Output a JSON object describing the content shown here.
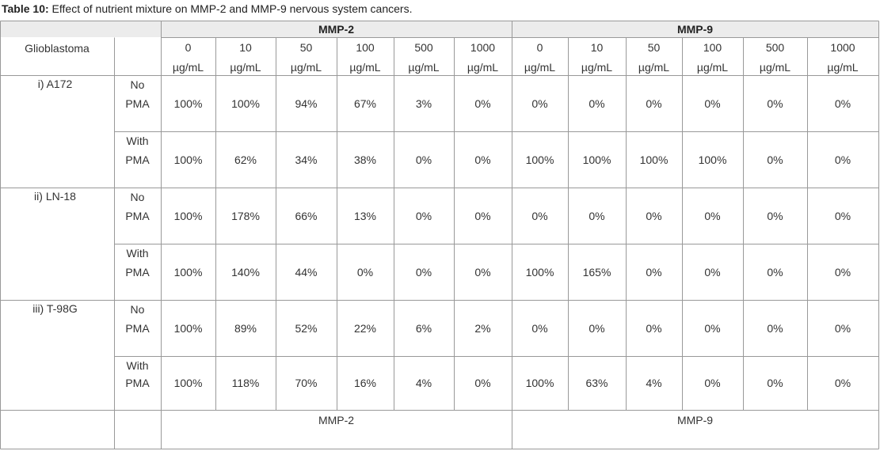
{
  "caption": {
    "label": "Table 10:",
    "text": " Effect of nutrient mixture on MMP-2 and MMP-9 nervous system cancers."
  },
  "header": {
    "group1": "MMP-2",
    "group2": "MMP-9",
    "row_label": "Glioblastoma",
    "doses": [
      {
        "value": "0",
        "unit": "µg/mL"
      },
      {
        "value": "10",
        "unit": "µg/mL"
      },
      {
        "value": "50",
        "unit": "µg/mL"
      },
      {
        "value": "100",
        "unit": "µg/mL"
      },
      {
        "value": "500",
        "unit": "µg/mL"
      },
      {
        "value": "1000",
        "unit": "µg/mL"
      },
      {
        "value": "0",
        "unit": "µg/mL"
      },
      {
        "value": "10",
        "unit": "µg/mL"
      },
      {
        "value": "50",
        "unit": "µg/mL"
      },
      {
        "value": "100",
        "unit": "µg/mL"
      },
      {
        "value": "500",
        "unit": "µg/mL"
      },
      {
        "value": "1000",
        "unit": "µg/mL"
      }
    ]
  },
  "cell_lines": [
    {
      "name": "i) A172",
      "rows": [
        {
          "condition": [
            "No",
            "PMA"
          ],
          "values": [
            "100%",
            "100%",
            "94%",
            "67%",
            "3%",
            "0%",
            "0%",
            "0%",
            "0%",
            "0%",
            "0%",
            "0%"
          ]
        },
        {
          "condition": [
            "With",
            "PMA"
          ],
          "values": [
            "100%",
            "62%",
            "34%",
            "38%",
            "0%",
            "0%",
            "100%",
            "100%",
            "100%",
            "100%",
            "0%",
            "0%"
          ]
        }
      ]
    },
    {
      "name": "ii) LN-18",
      "rows": [
        {
          "condition": [
            "No",
            "PMA"
          ],
          "values": [
            "100%",
            "178%",
            "66%",
            "13%",
            "0%",
            "0%",
            "0%",
            "0%",
            "0%",
            "0%",
            "0%",
            "0%"
          ]
        },
        {
          "condition": [
            "With",
            "PMA"
          ],
          "values": [
            "100%",
            "140%",
            "44%",
            "0%",
            "0%",
            "0%",
            "100%",
            "165%",
            "0%",
            "0%",
            "0%",
            "0%"
          ]
        }
      ]
    },
    {
      "name": "iii) T-98G",
      "rows": [
        {
          "condition": [
            "No",
            "PMA"
          ],
          "values": [
            "100%",
            "89%",
            "52%",
            "22%",
            "6%",
            "2%",
            "0%",
            "0%",
            "0%",
            "0%",
            "0%",
            "0%"
          ]
        },
        {
          "condition": [
            "With",
            "PMA"
          ],
          "values": [
            "100%",
            "118%",
            "70%",
            "16%",
            "4%",
            "0%",
            "100%",
            "63%",
            "4%",
            "0%",
            "0%",
            "0%"
          ]
        }
      ]
    }
  ],
  "footer": {
    "group1": "MMP-2",
    "group2": "MMP-9"
  },
  "colors": {
    "header_band": "#ececec",
    "border": "#999999",
    "text": "#333333"
  }
}
